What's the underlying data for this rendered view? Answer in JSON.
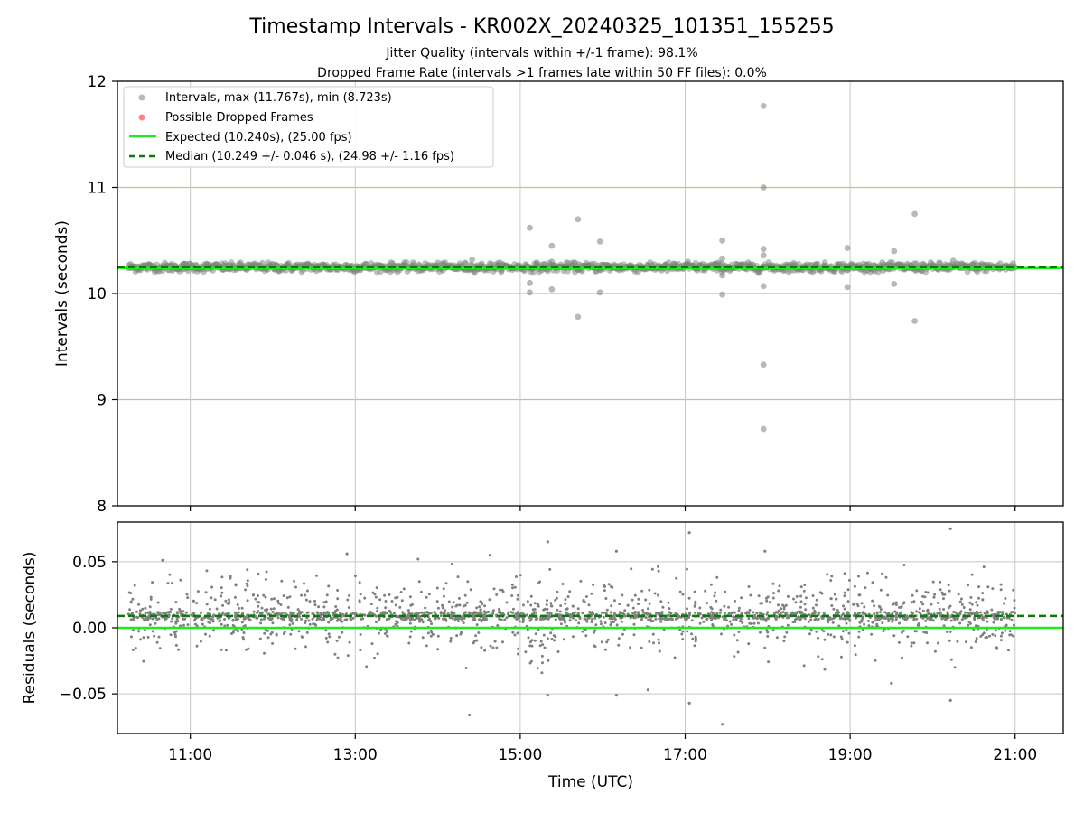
{
  "title": "Timestamp Intervals - KR002X_20240325_101351_155255",
  "subtitle_lines": [
    "Jitter Quality (intervals within +/-1 frame): 98.1%",
    "Dropped Frame Rate (intervals >1 frames late within 50 FF files): 0.0%"
  ],
  "colors": {
    "points": "#808080",
    "dropped": "#ff4d4d",
    "expected": "#1aee1a",
    "median": "#0b7a0b",
    "hband": "#dcb980",
    "grid": "#c8c8c8"
  },
  "chart_data": [
    {
      "type": "scatter",
      "panel": "intervals",
      "xlabel": "",
      "ylabel": "Intervals (seconds)",
      "xlim": [
        "10:07",
        "21:35"
      ],
      "ylim": [
        8,
        12
      ],
      "yticks": [
        "8",
        "9",
        "10",
        "11",
        "12"
      ],
      "horizontal_reference_lines": [
        9,
        10,
        11
      ],
      "grid": "vertical lines at x ticks",
      "legend_position": "top-left",
      "legend": [
        {
          "marker": "dot",
          "label": "Intervals, max (11.767s), min (8.723s)"
        },
        {
          "marker": "dot-red",
          "label": "Possible Dropped Frames"
        },
        {
          "marker": "solid-line",
          "label": "Expected (10.240s), (25.00 fps)"
        },
        {
          "marker": "dashed-line",
          "label": "Median (10.249 +/- 0.046 s), (24.98 +/- 1.16 fps)"
        }
      ],
      "series": [
        {
          "name": "Intervals, max (11.767s), min (8.723s)",
          "band_center": 10.249,
          "band_halfwidth": 0.045,
          "x_range": [
            "10:15",
            "21:00"
          ]
        },
        {
          "name": "Expected (10.240s), (25.00 fps)",
          "y": 10.24
        },
        {
          "name": "Median (10.249 +/- 0.046 s), (24.98 +/- 1.16 fps)",
          "y": 10.249
        }
      ],
      "outliers": [
        {
          "x": "15:07",
          "y": 10.62
        },
        {
          "x": "15:07",
          "y": 10.1
        },
        {
          "x": "15:07",
          "y": 10.01
        },
        {
          "x": "15:23",
          "y": 10.45
        },
        {
          "x": "15:23",
          "y": 10.3
        },
        {
          "x": "15:23",
          "y": 10.04
        },
        {
          "x": "15:42",
          "y": 10.7
        },
        {
          "x": "15:42",
          "y": 9.78
        },
        {
          "x": "15:58",
          "y": 10.49
        },
        {
          "x": "15:58",
          "y": 10.01
        },
        {
          "x": "14:25",
          "y": 10.32
        },
        {
          "x": "17:02",
          "y": 10.3
        },
        {
          "x": "17:27",
          "y": 10.5
        },
        {
          "x": "17:27",
          "y": 10.33
        },
        {
          "x": "17:27",
          "y": 10.17
        },
        {
          "x": "17:27",
          "y": 9.99
        },
        {
          "x": "17:57",
          "y": 11.767
        },
        {
          "x": "17:57",
          "y": 11.0
        },
        {
          "x": "17:57",
          "y": 10.42
        },
        {
          "x": "17:57",
          "y": 10.36
        },
        {
          "x": "17:57",
          "y": 10.07
        },
        {
          "x": "17:57",
          "y": 9.33
        },
        {
          "x": "17:57",
          "y": 8.723
        },
        {
          "x": "18:58",
          "y": 10.43
        },
        {
          "x": "18:58",
          "y": 10.06
        },
        {
          "x": "19:32",
          "y": 10.4
        },
        {
          "x": "19:32",
          "y": 10.09
        },
        {
          "x": "19:47",
          "y": 10.75
        },
        {
          "x": "19:47",
          "y": 9.74
        },
        {
          "x": "20:15",
          "y": 10.31
        }
      ]
    },
    {
      "type": "scatter",
      "panel": "residuals",
      "xlabel": "Time (UTC)",
      "ylabel": "Residuals (seconds)",
      "xlim": [
        "10:07",
        "21:35"
      ],
      "ylim": [
        -0.08,
        0.08
      ],
      "xticks": [
        "11:00",
        "13:00",
        "15:00",
        "17:00",
        "19:00",
        "21:00"
      ],
      "yticks": [
        "−0.05",
        "0.00",
        "0.05"
      ],
      "grid": "both axes",
      "series": [
        {
          "name": "Residuals",
          "dense_band_center": 0.009,
          "spread_range": [
            -0.045,
            0.045
          ],
          "x_range": [
            "10:15",
            "21:00"
          ]
        },
        {
          "name": "Expected",
          "y": 0.0
        },
        {
          "name": "Median",
          "y": 0.009
        }
      ],
      "outliers": [
        {
          "x": "12:54",
          "y": 0.056
        },
        {
          "x": "14:23",
          "y": -0.066
        },
        {
          "x": "15:20",
          "y": 0.065
        },
        {
          "x": "15:20",
          "y": -0.051
        },
        {
          "x": "16:10",
          "y": -0.051
        },
        {
          "x": "16:10",
          "y": 0.058
        },
        {
          "x": "16:33",
          "y": -0.047
        },
        {
          "x": "17:03",
          "y": 0.072
        },
        {
          "x": "17:03",
          "y": -0.057
        },
        {
          "x": "17:27",
          "y": -0.073
        },
        {
          "x": "17:58",
          "y": 0.058
        },
        {
          "x": "19:30",
          "y": -0.042
        },
        {
          "x": "20:13",
          "y": 0.075
        },
        {
          "x": "20:13",
          "y": -0.055
        },
        {
          "x": "14:38",
          "y": 0.055
        }
      ]
    }
  ]
}
